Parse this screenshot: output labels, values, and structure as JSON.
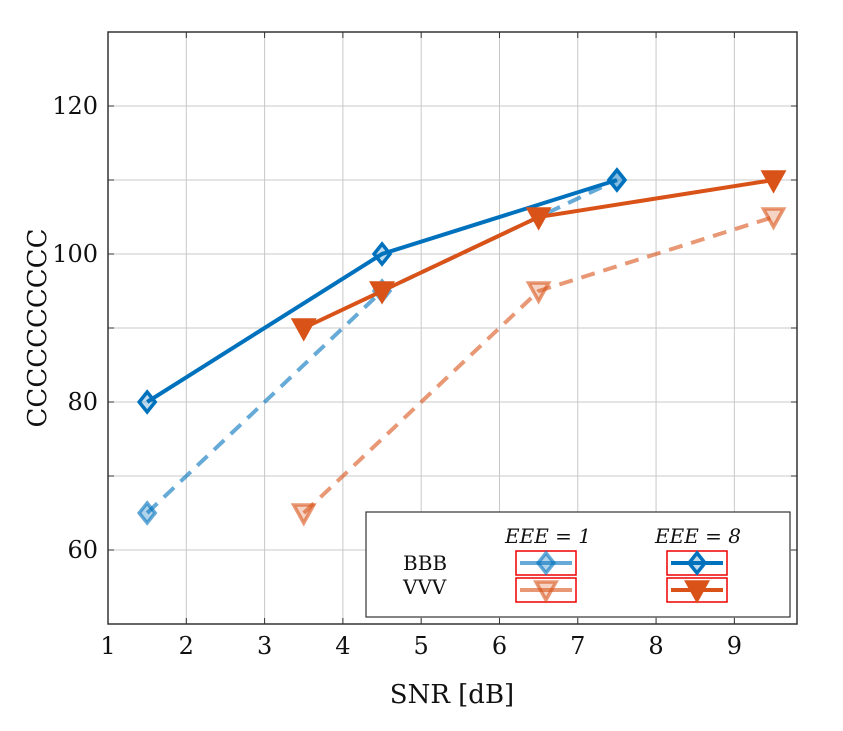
{
  "chart_data": {
    "type": "line",
    "title": "",
    "xlabel": "SNR [dB]",
    "ylabel": "CCCCCCCCCC",
    "xlim": [
      1,
      9.8
    ],
    "ylim": [
      50,
      130
    ],
    "xticks": [
      1,
      2,
      3,
      4,
      5,
      6,
      7,
      8,
      9
    ],
    "xtick_labels": [
      "1",
      "2",
      "3",
      "4",
      "5",
      "6",
      "7",
      "8",
      "9"
    ],
    "yticks": [
      60,
      80,
      100,
      120
    ],
    "ytick_labels": [
      "60",
      "80",
      "100",
      "120"
    ],
    "grid": true,
    "legend": {
      "placement": "bottom-right",
      "col_headers": [
        "EEE = 1",
        "EEE = 8"
      ],
      "row_labels": [
        "BBB",
        "VVV"
      ]
    },
    "series": [
      {
        "name": "BBB, EEE = 1",
        "color": "#0072BD",
        "dashed": true,
        "faded": true,
        "marker": "diamond",
        "x": [
          1.5,
          4.5,
          7.5
        ],
        "y": [
          65,
          95,
          110
        ]
      },
      {
        "name": "BBB, EEE = 8",
        "color": "#0072BD",
        "dashed": false,
        "faded": false,
        "marker": "diamond",
        "x": [
          1.5,
          4.5,
          7.5
        ],
        "y": [
          80,
          100,
          110
        ]
      },
      {
        "name": "VVV, EEE = 1",
        "color": "#D95319",
        "dashed": true,
        "faded": true,
        "marker": "triangle-down",
        "x": [
          3.5,
          6.5,
          9.5
        ],
        "y": [
          65,
          95,
          105
        ]
      },
      {
        "name": "VVV, EEE = 8",
        "color": "#D95319",
        "dashed": false,
        "faded": false,
        "marker": "triangle-down",
        "x": [
          3.5,
          4.5,
          6.5,
          9.5
        ],
        "y": [
          90,
          95,
          105,
          110
        ]
      }
    ]
  }
}
